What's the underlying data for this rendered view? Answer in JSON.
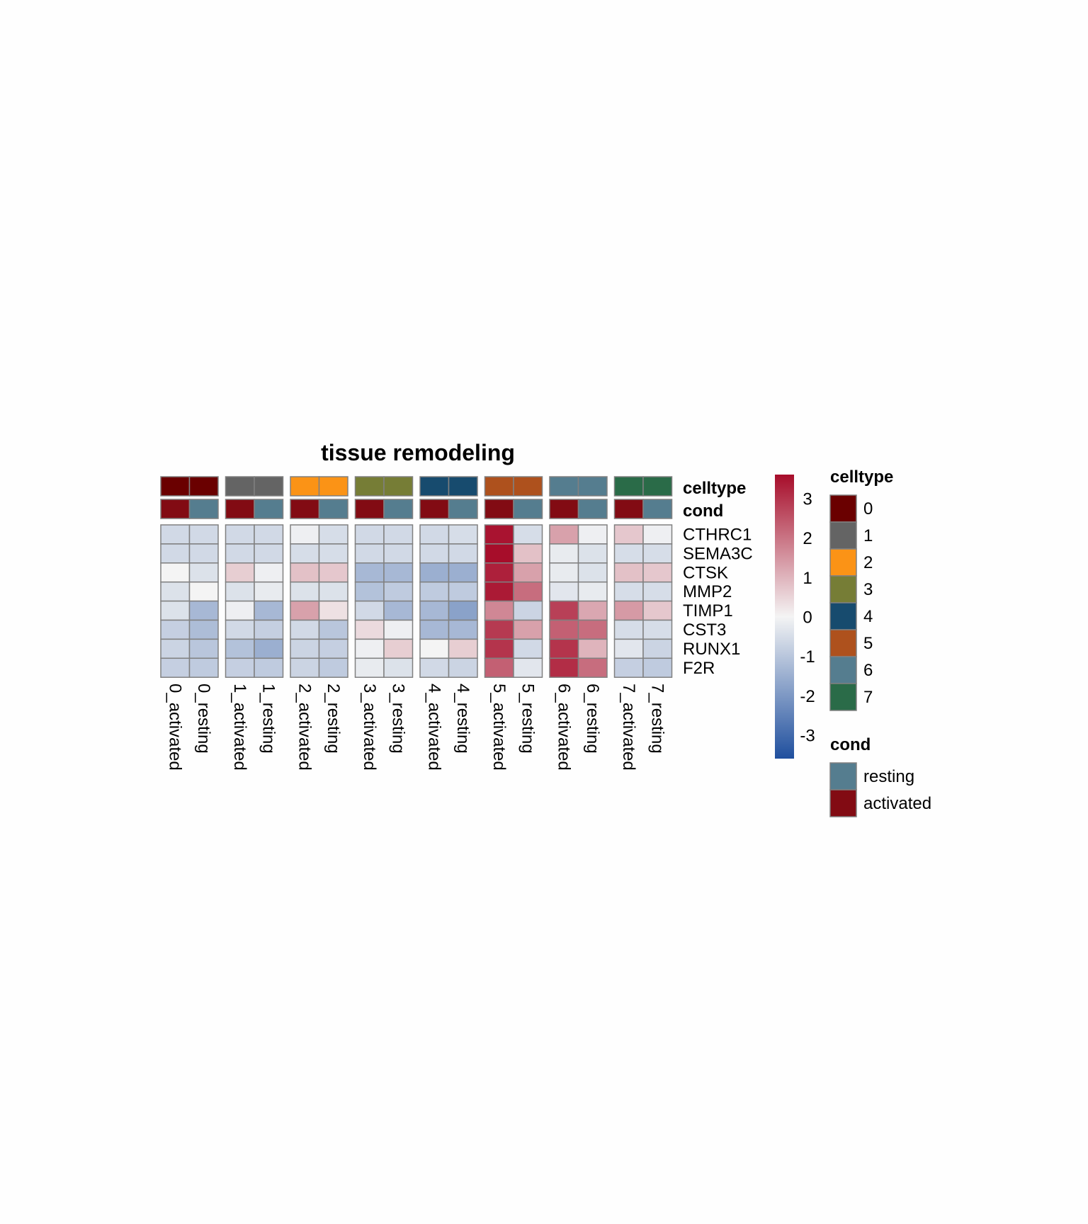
{
  "chart_data": {
    "type": "heatmap",
    "title": "tissue remodeling",
    "columns": [
      "0_activated",
      "0_resting",
      "1_activated",
      "1_resting",
      "2_activated",
      "2_resting",
      "3_activated",
      "3_resting",
      "4_activated",
      "4_resting",
      "5_activated",
      "5_resting",
      "6_activated",
      "6_resting",
      "7_activated",
      "7_resting"
    ],
    "column_groups": [
      "0",
      "1",
      "2",
      "3",
      "4",
      "5",
      "6",
      "7"
    ],
    "rows": [
      "CTHRC1",
      "SEMA3C",
      "CTSK",
      "MMP2",
      "TIMP1",
      "CST3",
      "RUNX1",
      "F2R"
    ],
    "values": [
      [
        -0.6,
        -0.6,
        -0.6,
        -0.6,
        -0.1,
        -0.5,
        -0.6,
        -0.6,
        -0.6,
        -0.5,
        3.5,
        -0.5,
        1.3,
        -0.1,
        0.7,
        -0.1
      ],
      [
        -0.6,
        -0.6,
        -0.6,
        -0.6,
        -0.5,
        -0.5,
        -0.6,
        -0.6,
        -0.6,
        -0.6,
        3.8,
        0.8,
        -0.2,
        -0.4,
        -0.5,
        -0.5
      ],
      [
        0.0,
        -0.4,
        0.6,
        -0.1,
        0.8,
        0.7,
        -1.3,
        -1.3,
        -1.5,
        -1.5,
        3.3,
        1.3,
        -0.2,
        -0.4,
        0.8,
        0.7
      ],
      [
        -0.4,
        0.0,
        -0.4,
        -0.2,
        -0.4,
        -0.4,
        -1.1,
        -0.9,
        -0.9,
        -0.9,
        3.4,
        2.1,
        -0.3,
        -0.2,
        -0.5,
        -0.5
      ],
      [
        -0.4,
        -1.3,
        -0.1,
        -1.3,
        1.3,
        0.3,
        -0.6,
        -1.3,
        -1.3,
        -1.8,
        1.7,
        -0.7,
        2.8,
        1.2,
        1.4,
        0.7
      ],
      [
        -0.8,
        -1.2,
        -0.6,
        -0.8,
        -0.6,
        -1.0,
        0.4,
        -0.1,
        -1.3,
        -1.3,
        2.9,
        1.3,
        2.3,
        2.1,
        -0.5,
        -0.5
      ],
      [
        -0.7,
        -1.0,
        -1.1,
        -1.5,
        -0.7,
        -0.8,
        -0.1,
        0.6,
        0.0,
        0.6,
        3.0,
        -0.6,
        3.0,
        1.0,
        -0.3,
        -0.7
      ],
      [
        -0.8,
        -0.9,
        -0.8,
        -0.9,
        -0.7,
        -0.9,
        -0.2,
        -0.4,
        -0.6,
        -0.7,
        2.3,
        -0.3,
        3.1,
        2.1,
        -0.8,
        -0.9
      ]
    ],
    "annotation_rows": [
      "celltype",
      "cond"
    ],
    "colorbar": {
      "ticks": [
        3,
        2,
        1,
        0,
        -1,
        -2,
        -3
      ],
      "range": [
        -3.6,
        3.6
      ],
      "low_color": "#1f4f9e",
      "mid_color": "#f4f4f4",
      "high_color": "#a70d2a"
    },
    "legends": {
      "celltype": {
        "title": "celltype",
        "items": [
          {
            "label": "0",
            "color": "#6a0000"
          },
          {
            "label": "1",
            "color": "#646464"
          },
          {
            "label": "2",
            "color": "#fb9316"
          },
          {
            "label": "3",
            "color": "#767d36"
          },
          {
            "label": "4",
            "color": "#174b6e"
          },
          {
            "label": "5",
            "color": "#ae511d"
          },
          {
            "label": "6",
            "color": "#557d8f"
          },
          {
            "label": "7",
            "color": "#2a6b48"
          }
        ]
      },
      "cond": {
        "title": "cond",
        "items": [
          {
            "label": "resting",
            "color": "#557d8f"
          },
          {
            "label": "activated",
            "color": "#820b13"
          }
        ]
      }
    }
  }
}
